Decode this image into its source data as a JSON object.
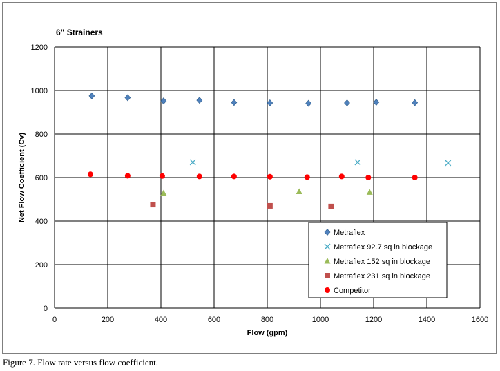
{
  "caption": "Figure 7.  Flow rate versus flow coefficient.",
  "chart_data": {
    "type": "scatter",
    "title": "6\" Strainers",
    "xlabel": "Flow (gpm)",
    "ylabel": "Net Flow Coefficient (Cv)",
    "xlim": [
      0,
      1600
    ],
    "ylim": [
      0,
      1200
    ],
    "xticks": [
      0,
      200,
      400,
      600,
      800,
      1000,
      1200,
      1400,
      1600
    ],
    "yticks": [
      0,
      200,
      400,
      600,
      800,
      1000,
      1200
    ],
    "grid": true,
    "legend_position": "bottom-right",
    "series": [
      {
        "name": "Metraflex",
        "marker": "diamond",
        "color": "#4f81bd",
        "points": [
          [
            140,
            975
          ],
          [
            275,
            967
          ],
          [
            410,
            952
          ],
          [
            545,
            955
          ],
          [
            675,
            945
          ],
          [
            810,
            943
          ],
          [
            955,
            941
          ],
          [
            1100,
            943
          ],
          [
            1210,
            946
          ],
          [
            1355,
            944
          ]
        ]
      },
      {
        "name": "Metraflex 92.7 sq in blockage",
        "marker": "x",
        "color": "#4bacc6",
        "points": [
          [
            520,
            670
          ],
          [
            1140,
            670
          ],
          [
            1480,
            667
          ]
        ]
      },
      {
        "name": "Metraflex 152 sq in blockage",
        "marker": "triangle",
        "color": "#9bbb59",
        "points": [
          [
            410,
            528
          ],
          [
            920,
            535
          ],
          [
            1185,
            532
          ]
        ]
      },
      {
        "name": "Metraflex 231 sq in blockage",
        "marker": "square",
        "color": "#c0504d",
        "points": [
          [
            370,
            476
          ],
          [
            810,
            470
          ],
          [
            1040,
            467
          ]
        ]
      },
      {
        "name": "Competitor",
        "marker": "circle",
        "color": "#ff0000",
        "points": [
          [
            135,
            615
          ],
          [
            275,
            608
          ],
          [
            405,
            607
          ],
          [
            545,
            605
          ],
          [
            675,
            605
          ],
          [
            810,
            604
          ],
          [
            950,
            602
          ],
          [
            1080,
            605
          ],
          [
            1180,
            600
          ],
          [
            1355,
            600
          ]
        ]
      }
    ]
  }
}
